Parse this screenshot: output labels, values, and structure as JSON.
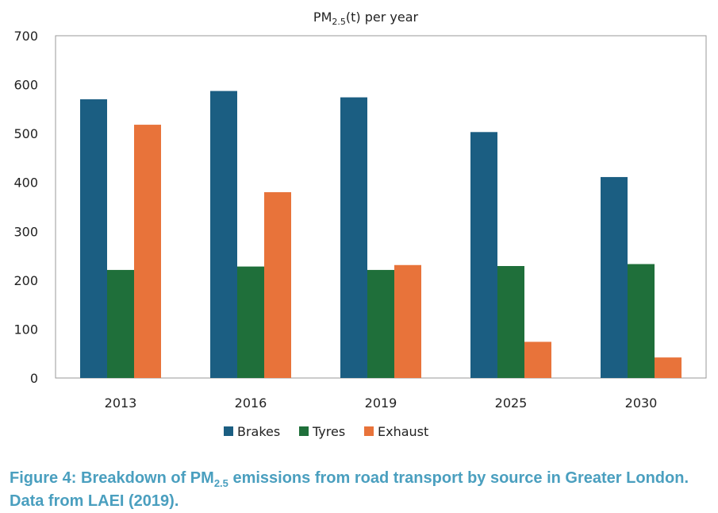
{
  "chart_data": {
    "type": "bar",
    "title_main": "PM",
    "title_sub": "2.5",
    "title_rest": "(t) per year",
    "categories": [
      "2013",
      "2016",
      "2019",
      "2025",
      "2030"
    ],
    "series": [
      {
        "name": "Brakes",
        "color": "#1b5e82",
        "values": [
          570,
          587,
          574,
          503,
          411
        ]
      },
      {
        "name": "Tyres",
        "color": "#1f6f3a",
        "values": [
          221,
          228,
          221,
          229,
          233
        ]
      },
      {
        "name": "Exhaust",
        "color": "#e8733a",
        "values": [
          518,
          380,
          231,
          74,
          42
        ]
      }
    ],
    "ylim": [
      0,
      700
    ],
    "yticks": [
      "0",
      "100",
      "200",
      "300",
      "400",
      "500",
      "600",
      "700"
    ],
    "legend_position": "bottom-center",
    "grid": false
  },
  "caption": {
    "part1": "Figure 4: Breakdown of PM",
    "sub": "2.5",
    "part2": " emissions from road transport by source in Greater London. Data from LAEI (2019)."
  }
}
